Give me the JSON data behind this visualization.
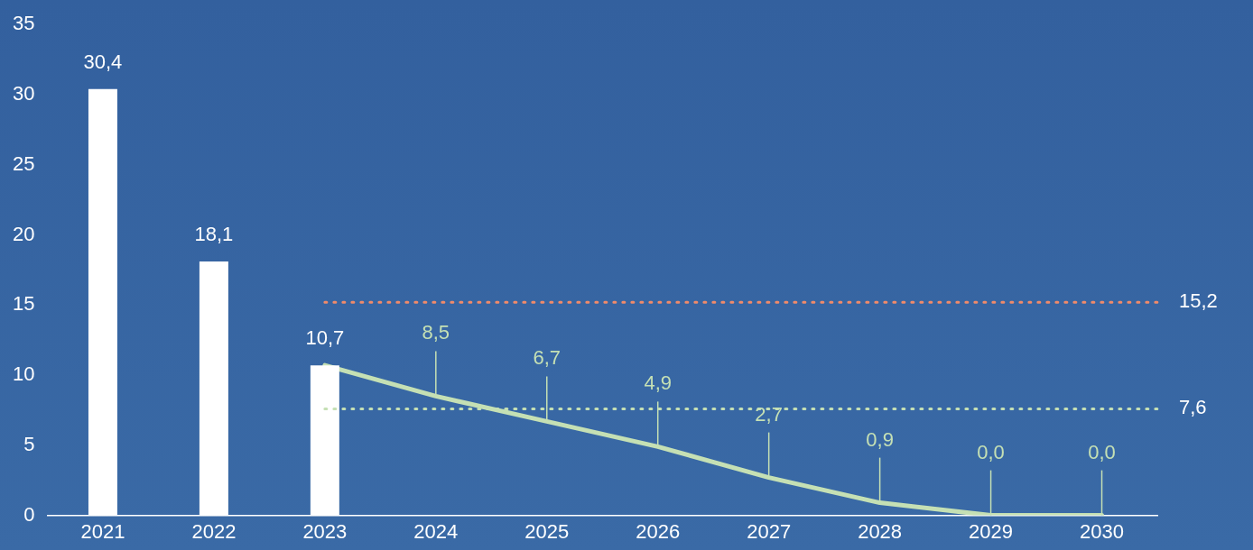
{
  "chart_data": {
    "type": "bar",
    "categories": [
      "2021",
      "2022",
      "2023",
      "2024",
      "2025",
      "2026",
      "2027",
      "2028",
      "2029",
      "2030"
    ],
    "series": [
      {
        "color": "#ffffff",
        "values": [
          30.4,
          18.1,
          10.7,
          null,
          null,
          null,
          null,
          null,
          null,
          null
        ],
        "value_labels": [
          "30,4",
          "18,1",
          "10,7",
          null,
          null,
          null,
          null,
          null,
          null,
          null
        ]
      },
      {
        "type": "line",
        "color": "#c5e0b4",
        "values": [
          null,
          null,
          10.7,
          8.5,
          6.7,
          4.9,
          2.7,
          0.9,
          0.0,
          0.0
        ],
        "value_labels": [
          null,
          null,
          null,
          "8,5",
          "6,7",
          "4,9",
          "2,7",
          "0,9",
          "0,0",
          "0,0"
        ]
      }
    ],
    "ylim": [
      0,
      35
    ],
    "yticks": [
      0,
      5,
      10,
      15,
      20,
      25,
      30,
      35
    ],
    "ref_lines": [
      {
        "axis": "y",
        "value": 15.2,
        "label": "15,2",
        "color": "#f08a6a",
        "line_style": "dotted"
      },
      {
        "axis": "y",
        "value": 7.6,
        "label": "7,6",
        "color": "#c5e0b4",
        "line_style": "dotted"
      }
    ],
    "grid": false,
    "legend": false,
    "marker": "none"
  }
}
